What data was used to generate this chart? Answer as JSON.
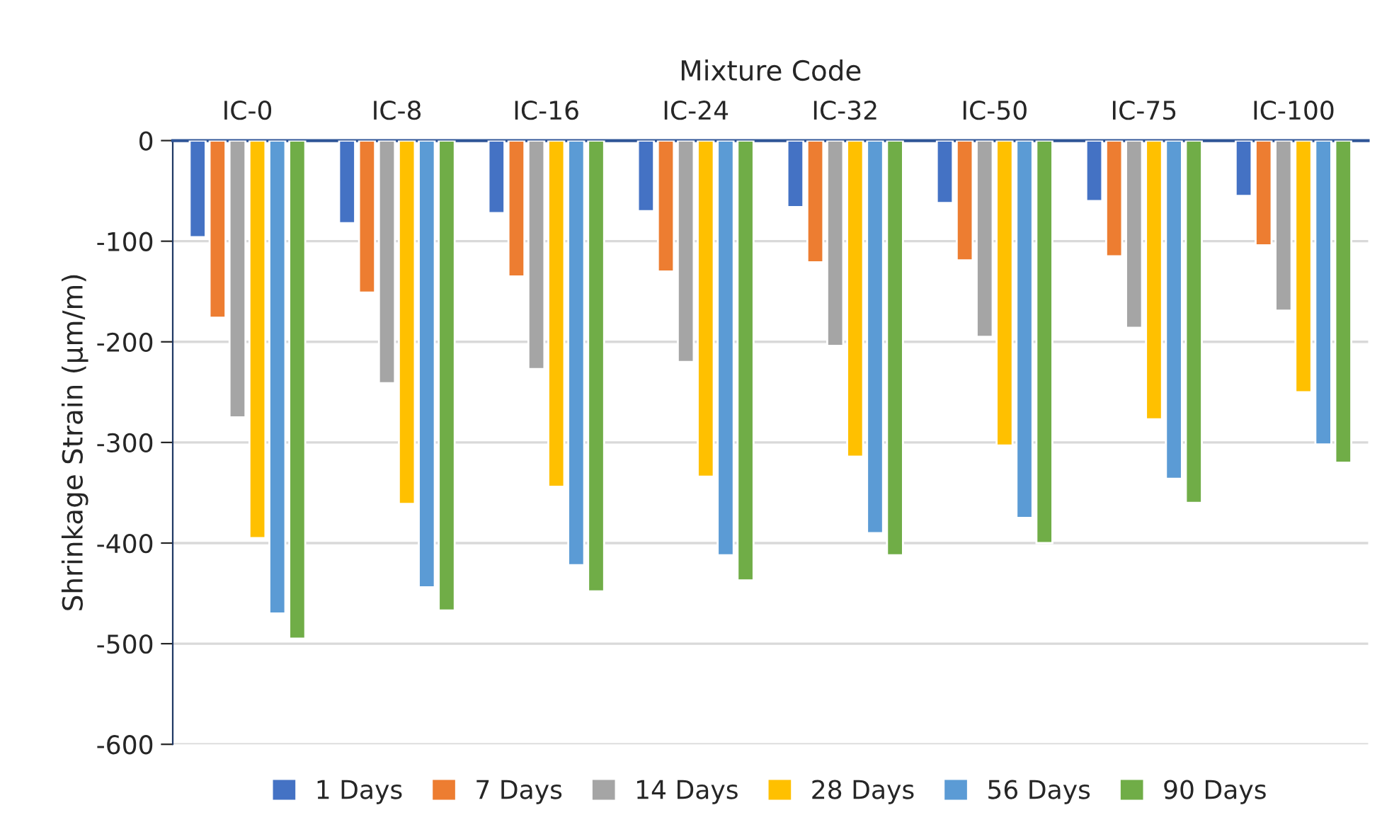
{
  "chart_data": {
    "type": "bar",
    "xlabel": "Mixture Code",
    "ylabel": "Shrinkage Strain (µm/m)",
    "categories": [
      "IC-0",
      "IC-8",
      "IC-16",
      "IC-24",
      "IC-32",
      "IC-50",
      "IC-75",
      "IC-100"
    ],
    "series": [
      {
        "name": "1 Days",
        "color": "#4472c4",
        "values": [
          -96,
          -82,
          -72,
          -70,
          -66,
          -62,
          -60,
          -55
        ]
      },
      {
        "name": "7 Days",
        "color": "#ed7d31",
        "values": [
          -176,
          -151,
          -135,
          -130,
          -121,
          -119,
          -115,
          -104
        ]
      },
      {
        "name": "14 Days",
        "color": "#a5a5a5",
        "values": [
          -275,
          -241,
          -227,
          -220,
          -204,
          -195,
          -186,
          -169
        ]
      },
      {
        "name": "28 Days",
        "color": "#ffc000",
        "values": [
          -395,
          -361,
          -344,
          -334,
          -314,
          -303,
          -277,
          -250
        ]
      },
      {
        "name": "56 Days",
        "color": "#5b9bd5",
        "values": [
          -470,
          -444,
          -422,
          -412,
          -390,
          -375,
          -336,
          -302
        ]
      },
      {
        "name": "90 Days",
        "color": "#70ad47",
        "values": [
          -495,
          -467,
          -448,
          -437,
          -412,
          -400,
          -360,
          -320
        ]
      }
    ],
    "ylim": [
      -600,
      0
    ],
    "yticks": [
      -600,
      -500,
      -400,
      -300,
      -200,
      -100,
      0
    ],
    "grid": "y",
    "legend": "bottom"
  }
}
